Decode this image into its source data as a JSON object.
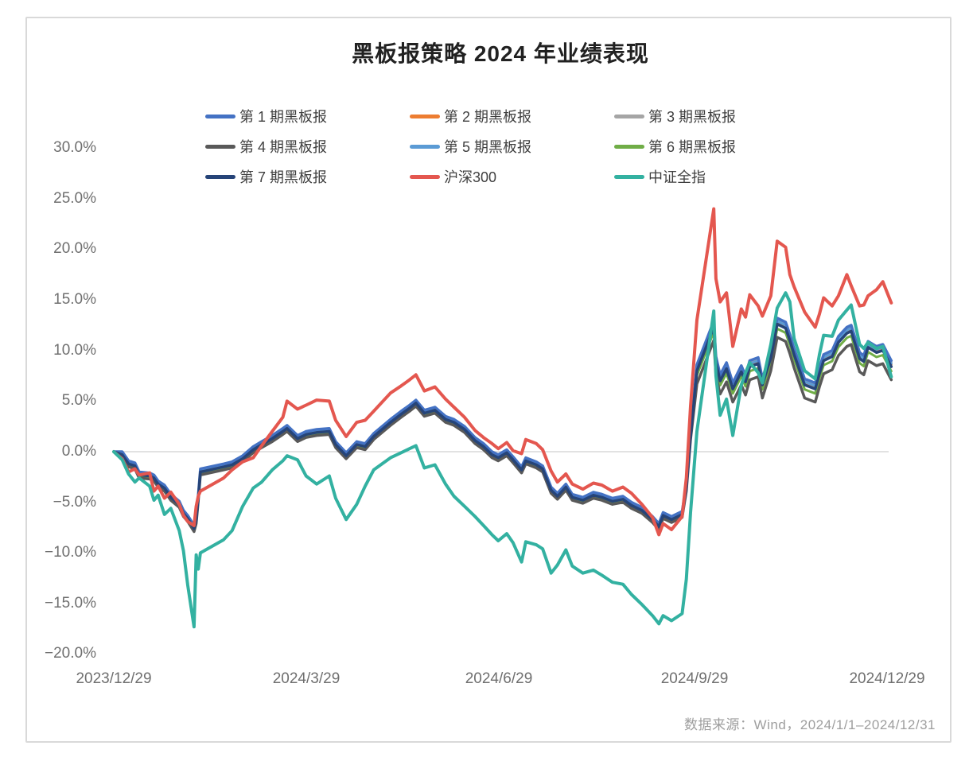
{
  "chart_data": {
    "type": "line",
    "title": "黑板报策略 2024 年业绩表现",
    "unit": "percent",
    "ylim": [
      -20,
      30
    ],
    "grid": "only-zero-line",
    "legend_position": "top",
    "source_note": "数据来源：Wind，2024/1/1–2024/12/31",
    "y_tick_labels": [
      "30.0%",
      "25.0%",
      "20.0%",
      "15.0%",
      "10.0%",
      "5.0%",
      "0.0%",
      "−5.0%",
      "−10.0%",
      "−15.0%",
      "−20.0%"
    ],
    "x_tick_labels": [
      "2023/12/29",
      "2024/3/29",
      "2024/6/29",
      "2024/9/29",
      "2024/12/29"
    ],
    "x_dates": [
      "2023/12/29",
      "2024/1/2",
      "2024/1/5",
      "2024/1/8",
      "2024/1/10",
      "2024/1/15",
      "2024/1/17",
      "2024/1/19",
      "2024/1/22",
      "2024/1/25",
      "2024/1/29",
      "2024/1/31",
      "2024/2/2",
      "2024/2/5",
      "2024/2/6",
      "2024/2/7",
      "2024/2/8",
      "2024/2/19",
      "2024/2/23",
      "2024/2/28",
      "2024/3/4",
      "2024/3/8",
      "2024/3/13",
      "2024/3/18",
      "2024/3/20",
      "2024/3/25",
      "2024/3/29",
      "2024/4/3",
      "2024/4/9",
      "2024/4/12",
      "2024/4/17",
      "2024/4/22",
      "2024/4/26",
      "2024/4/30",
      "2024/5/8",
      "2024/5/13",
      "2024/5/17",
      "2024/5/20",
      "2024/5/24",
      "2024/5/29",
      "2024/6/3",
      "2024/6/7",
      "2024/6/12",
      "2024/6/17",
      "2024/6/21",
      "2024/6/25",
      "2024/6/28",
      "2024/7/2",
      "2024/7/5",
      "2024/7/9",
      "2024/7/11",
      "2024/7/16",
      "2024/7/19",
      "2024/7/23",
      "2024/7/26",
      "2024/7/30",
      "2024/8/2",
      "2024/8/7",
      "2024/8/12",
      "2024/8/16",
      "2024/8/21",
      "2024/8/26",
      "2024/8/30",
      "2024/9/4",
      "2024/9/9",
      "2024/9/12",
      "2024/9/14",
      "2024/9/18",
      "2024/9/23",
      "2024/9/25",
      "2024/9/27",
      "2024/9/30",
      "2024/10/8",
      "2024/10/9",
      "2024/10/11",
      "2024/10/14",
      "2024/10/17",
      "2024/10/21",
      "2024/10/23",
      "2024/10/25",
      "2024/10/29",
      "2024/10/31",
      "2024/11/4",
      "2024/11/7",
      "2024/11/11",
      "2024/11/13",
      "2024/11/15",
      "2024/11/20",
      "2024/11/25",
      "2024/11/27",
      "2024/11/29",
      "2024/12/3",
      "2024/12/6",
      "2024/12/10",
      "2024/12/12",
      "2024/12/16",
      "2024/12/18",
      "2024/12/20",
      "2024/12/24",
      "2024/12/27",
      "2024/12/31"
    ],
    "phase2_start_index": 71,
    "series": [
      {
        "name": "第 1 期黑板报",
        "color": "#4472C4",
        "width": 3.5,
        "derive_from": "第 7 期黑板报",
        "offset_early": 0.3,
        "offset_late": 0.6
      },
      {
        "name": "第 2 期黑板报",
        "color": "#ED7D31",
        "width": 3,
        "derive_from": "第 7 期黑板报",
        "offset_early": 0.1,
        "offset_late": 0.2
      },
      {
        "name": "第 3 期黑板报",
        "color": "#A5A5A5",
        "width": 3,
        "derive_from": "第 7 期黑板报",
        "offset_early": 0.2,
        "offset_late": 0.4
      },
      {
        "name": "第 4 期黑板报",
        "color": "#595959",
        "width": 3.5,
        "derive_from": "第 7 期黑板报",
        "offset_early": -0.3,
        "offset_late": -1.3
      },
      {
        "name": "第 5 期黑板报",
        "color": "#5B9BD5",
        "width": 3,
        "derive_from": "第 7 期黑板报",
        "offset_early": 0.2,
        "offset_late": 0.3
      },
      {
        "name": "第 6 期黑板报",
        "color": "#70AD47",
        "width": 3,
        "derive_from": "第 7 期黑板报",
        "offset_early": -0.2,
        "offset_late": -0.45
      },
      {
        "name": "第 7 期黑板报",
        "color": "#264478",
        "width": 3.5,
        "values": [
          0,
          -0.3,
          -1.2,
          -1.4,
          -2.3,
          -2.4,
          -2.6,
          -3.2,
          -3.6,
          -4.5,
          -5.2,
          -6.1,
          -6.6,
          -7.6,
          -6.8,
          -4.6,
          -2,
          -1.5,
          -1.3,
          -0.7,
          0.2,
          0.7,
          1.3,
          2,
          2.3,
          1.3,
          1.7,
          1.9,
          2,
          0.7,
          -0.4,
          0.7,
          0.5,
          1.5,
          2.9,
          3.7,
          4.3,
          4.8,
          3.8,
          4.1,
          3.2,
          2.9,
          2.2,
          1.1,
          0.5,
          -0.3,
          -0.6,
          -0.1,
          -0.8,
          -1.8,
          -0.9,
          -1.3,
          -1.7,
          -3.8,
          -4.4,
          -3.5,
          -4.5,
          -4.8,
          -4.3,
          -4.5,
          -4.9,
          -4.7,
          -5.3,
          -5.8,
          -6.7,
          -7.4,
          -6.3,
          -6.7,
          -6.2,
          -3.6,
          1.5,
          8,
          12.3,
          8.8,
          7,
          8.2,
          6.2,
          7.9,
          6.9,
          8.4,
          8.7,
          6.6,
          9.3,
          12.6,
          12.2,
          11,
          9.6,
          6.6,
          6.2,
          7.7,
          9,
          9.4,
          10.8,
          11.7,
          11.9,
          9.2,
          8.9,
          10.3,
          9.8,
          10,
          8.4
        ]
      },
      {
        "name": "沪深300",
        "color": "#E4574F",
        "width": 4,
        "values": [
          0,
          -0.7,
          -2,
          -1.7,
          -2.3,
          -2.1,
          -3.9,
          -3.4,
          -4.6,
          -4,
          -5.2,
          -6.3,
          -6.9,
          -7.3,
          -5.4,
          -4.4,
          -3.9,
          -2.6,
          -1.8,
          -1,
          -0.6,
          0.6,
          2,
          3.4,
          5,
          4.2,
          4.6,
          5.1,
          5,
          3.1,
          1.5,
          2.9,
          3.1,
          4,
          5.8,
          6.5,
          7.1,
          7.6,
          6,
          6.4,
          5.2,
          4.4,
          3.4,
          2.1,
          1.4,
          0.8,
          0.3,
          0.9,
          0.1,
          -0.2,
          1.2,
          0.8,
          0.2,
          -1.9,
          -3,
          -2.2,
          -3.2,
          -3.7,
          -3.1,
          -3.3,
          -3.9,
          -3.5,
          -4.1,
          -5.2,
          -6.5,
          -8.2,
          -7.1,
          -7.7,
          -6.4,
          -2.6,
          4.5,
          13,
          24,
          17.1,
          14.8,
          15.7,
          10.4,
          14.1,
          13.3,
          15.5,
          14.4,
          13.4,
          15.4,
          20.8,
          20.2,
          17.5,
          16.3,
          13.8,
          12.3,
          13.6,
          15.2,
          14.4,
          15.4,
          17.5,
          16.4,
          14.4,
          14.5,
          15.4,
          16,
          16.8,
          14.7
        ]
      },
      {
        "name": "中证全指",
        "color": "#33B1A1",
        "width": 4,
        "values": [
          0,
          -0.8,
          -2.2,
          -3,
          -2.6,
          -3.4,
          -4.8,
          -4.3,
          -6.2,
          -5.6,
          -7.8,
          -9.8,
          -13.2,
          -17.3,
          -10.2,
          -11.6,
          -10,
          -8.7,
          -7.8,
          -5.4,
          -3.6,
          -3,
          -1.8,
          -0.9,
          -0.4,
          -0.8,
          -2.4,
          -3.2,
          -2.4,
          -4.6,
          -6.7,
          -5.2,
          -3.4,
          -1.8,
          -0.6,
          -0.1,
          0.3,
          0.6,
          -1.6,
          -1.3,
          -3.2,
          -4.4,
          -5.4,
          -6.4,
          -7.3,
          -8.2,
          -8.8,
          -8.1,
          -9,
          -10.9,
          -8.9,
          -9.2,
          -9.6,
          -12,
          -11.2,
          -9.7,
          -11.3,
          -12,
          -11.7,
          -12.2,
          -12.9,
          -13.1,
          -14.1,
          -15.1,
          -16.2,
          -17,
          -16.2,
          -16.7,
          -16,
          -12.6,
          -6,
          2,
          13.9,
          7.5,
          3.6,
          5.2,
          1.6,
          6.6,
          7.8,
          8.8,
          7.8,
          6.8,
          10.6,
          14.2,
          15.7,
          14.8,
          11.2,
          8,
          7.2,
          9.6,
          11.5,
          11.4,
          13,
          14,
          14.5,
          10.6,
          10.2,
          10.8,
          10.2,
          10.4,
          7.4
        ]
      }
    ]
  }
}
